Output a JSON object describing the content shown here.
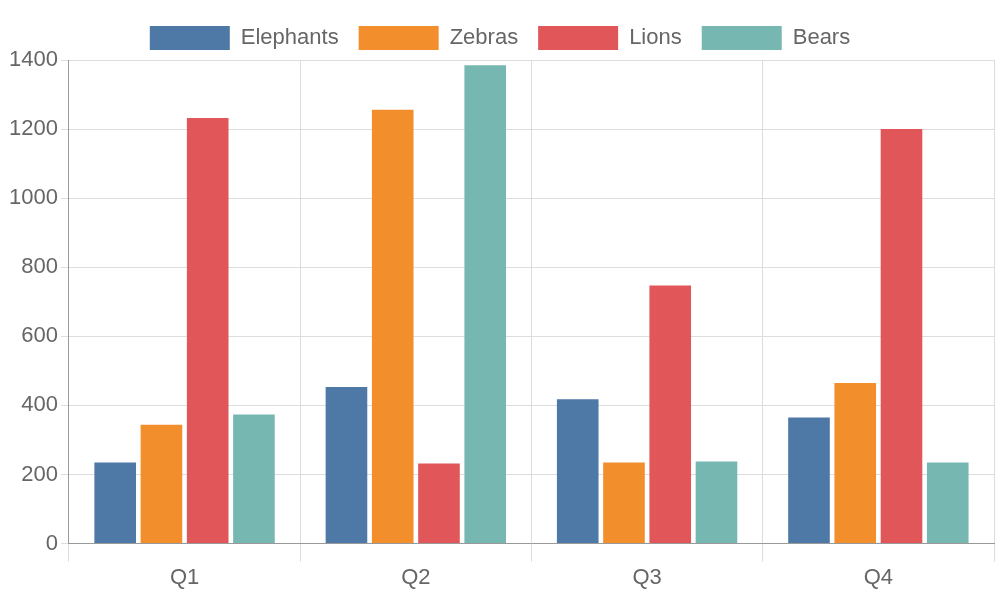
{
  "chart_data": {
    "type": "bar",
    "categories": [
      "Q1",
      "Q2",
      "Q3",
      "Q4"
    ],
    "series": [
      {
        "name": "Elephants",
        "color": "#4e79a7",
        "values": [
          235,
          453,
          418,
          365
        ]
      },
      {
        "name": "Zebras",
        "color": "#f28e2b",
        "values": [
          344,
          1256,
          235,
          465
        ]
      },
      {
        "name": "Lions",
        "color": "#e15759",
        "values": [
          1232,
          232,
          747,
          1200
        ]
      },
      {
        "name": "Bears",
        "color": "#76b7b2",
        "values": [
          374,
          1385,
          238,
          235
        ]
      }
    ],
    "ylim": [
      0,
      1400
    ],
    "yticks": [
      0,
      200,
      400,
      600,
      800,
      1000,
      1200,
      1400
    ],
    "grid": true,
    "legend": "top"
  }
}
